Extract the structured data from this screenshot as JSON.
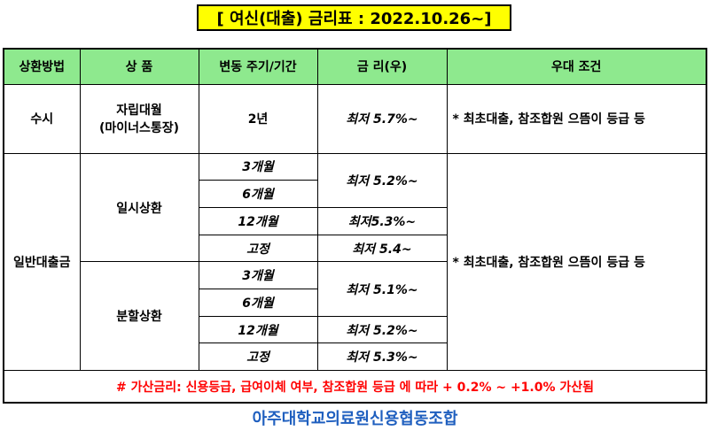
{
  "title": "[ 여신(대출) 금리표 : 2022.10.26~]",
  "headers": [
    "상환방법",
    "상 품",
    "변동 주기/기간",
    "금 리(우)",
    "우대 조건"
  ],
  "row_susi": {
    "method": "수시",
    "product_line1": "자립대월",
    "product_line2": "(마이너스통장)",
    "period": "2년",
    "rate": "최저 5.7%~",
    "condition": "* 최초대출, 참조합원 으뜸이 등급 등"
  },
  "general": {
    "method": "일반대출금",
    "condition": "* 최초대출, 참조합원 으뜸이 등급 등",
    "ilsi": {
      "label": "일시상환",
      "periods": [
        "3개월",
        "6개월",
        "12개월",
        "고정"
      ],
      "rates": [
        "최저 5.2%~",
        "최저5.3%~",
        "최저 5.4~"
      ]
    },
    "bunhal": {
      "label": "분할상환",
      "periods": [
        "3개월",
        "6개월",
        "12개월",
        "고정"
      ],
      "rates": [
        "최저 5.1%~",
        "최저 5.2%~",
        "최저 5.3%~"
      ]
    }
  },
  "note": "# 가산금리: 신용등급, 급여이체 여부, 참조합원 등급 에 따라 + 0.2% ~ +1.0% 가산됨",
  "footer": "아주대학교의료원신용협동조합",
  "colors": {
    "title_bg": "#ffff00",
    "header_bg": "#8ee98e",
    "note_text": "#ff0000",
    "footer_text": "#1f5fbf"
  }
}
